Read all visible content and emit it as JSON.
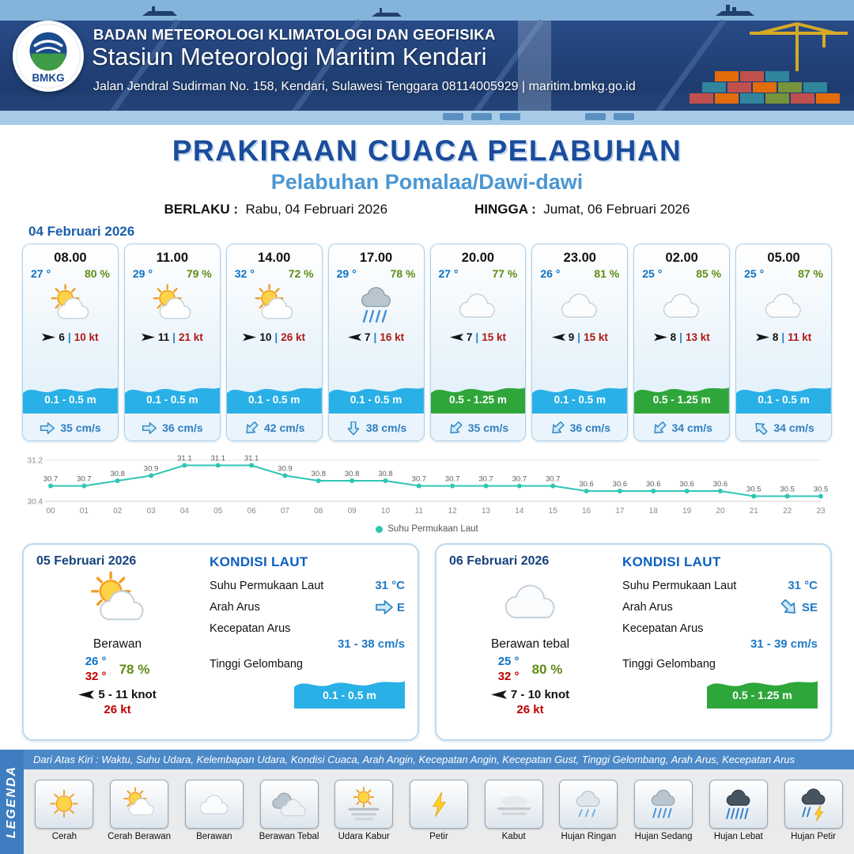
{
  "colors": {
    "wave_blue": "#29b0e6",
    "wave_green": "#2fa63a",
    "accent_blue": "#1b4c9c"
  },
  "header": {
    "logo_text": "BMKG",
    "agency": "BADAN METEOROLOGI KLIMATOLOGI DAN GEOFISIKA",
    "station": "Stasiun Meteorologi Maritim Kendari",
    "address": "Jalan Jendral Sudirman No. 158, Kendari, Sulawesi Tenggara  08114005929 | maritim.bmkg.go.id"
  },
  "title": {
    "main": "PRAKIRAAN CUACA PELABUHAN",
    "subtitle": "Pelabuhan Pomalaa/Dawi-dawi",
    "berlaku_label": "BERLAKU :",
    "berlaku_value": "Rabu, 04 Februari 2026",
    "hingga_label": "HINGGA :",
    "hingga_value": "Jumat, 06 Februari 2026"
  },
  "forecast": {
    "date": "04 Februari 2026",
    "cards": [
      {
        "time": "08.00",
        "temp": "27 °",
        "rh": "80 %",
        "icon": "cerah-berawan",
        "wind_dir": "E",
        "wind": "6",
        "gust": "10 kt",
        "wave": "0.1 - 0.5 m",
        "wave_color": "blue",
        "current_dir": "E",
        "current": "35 cm/s"
      },
      {
        "time": "11.00",
        "temp": "29 °",
        "rh": "79 %",
        "icon": "cerah-berawan",
        "wind_dir": "E",
        "wind": "11",
        "gust": "21 kt",
        "wave": "0.1 - 0.5 m",
        "wave_color": "blue",
        "current_dir": "E",
        "current": "36 cm/s"
      },
      {
        "time": "14.00",
        "temp": "32 °",
        "rh": "72 %",
        "icon": "cerah-berawan",
        "wind_dir": "E",
        "wind": "10",
        "gust": "26 kt",
        "wave": "0.1 - 0.5 m",
        "wave_color": "blue",
        "current_dir": "SW",
        "current": "42 cm/s"
      },
      {
        "time": "17.00",
        "temp": "29 °",
        "rh": "78 %",
        "icon": "hujan-sedang",
        "wind_dir": "W",
        "wind": "7",
        "gust": "16 kt",
        "wave": "0.1 - 0.5 m",
        "wave_color": "blue",
        "current_dir": "S",
        "current": "38 cm/s"
      },
      {
        "time": "20.00",
        "temp": "27 °",
        "rh": "77 %",
        "icon": "berawan",
        "wind_dir": "W",
        "wind": "7",
        "gust": "15 kt",
        "wave": "0.5 - 1.25 m",
        "wave_color": "green",
        "current_dir": "SW",
        "current": "35 cm/s"
      },
      {
        "time": "23.00",
        "temp": "26 °",
        "rh": "81 %",
        "icon": "berawan",
        "wind_dir": "W",
        "wind": "9",
        "gust": "15 kt",
        "wave": "0.1 - 0.5 m",
        "wave_color": "blue",
        "current_dir": "SW",
        "current": "36 cm/s"
      },
      {
        "time": "02.00",
        "temp": "25 °",
        "rh": "85 %",
        "icon": "berawan",
        "wind_dir": "E",
        "wind": "8",
        "gust": "13 kt",
        "wave": "0.5 - 1.25 m",
        "wave_color": "green",
        "current_dir": "SW",
        "current": "34 cm/s"
      },
      {
        "time": "05.00",
        "temp": "25 °",
        "rh": "87 %",
        "icon": "berawan",
        "wind_dir": "E",
        "wind": "8",
        "gust": "11 kt",
        "wave": "0.1 - 0.5 m",
        "wave_color": "blue",
        "current_dir": "NW",
        "current": "34 cm/s"
      }
    ]
  },
  "chart_data": {
    "type": "line",
    "x": [
      "00",
      "01",
      "02",
      "03",
      "04",
      "05",
      "06",
      "07",
      "08",
      "09",
      "10",
      "11",
      "12",
      "13",
      "14",
      "15",
      "16",
      "17",
      "18",
      "19",
      "20",
      "21",
      "22",
      "23"
    ],
    "series": [
      {
        "name": "Suhu Permukaan Laut",
        "values": [
          30.7,
          30.7,
          30.8,
          30.9,
          31.1,
          31.1,
          31.1,
          30.9,
          30.8,
          30.8,
          30.8,
          30.7,
          30.7,
          30.7,
          30.7,
          30.7,
          30.6,
          30.6,
          30.6,
          30.6,
          30.6,
          30.5,
          30.5,
          30.5
        ]
      }
    ],
    "ylim": [
      30.4,
      31.2
    ],
    "line_color": "#2fc5b5",
    "legend_position": "bottom-center",
    "grid": false
  },
  "days": [
    {
      "date": "05 Februari 2026",
      "condition": "Berawan",
      "icon": "cerah-berawan",
      "temp_min": "26 °",
      "temp_max": "32 °",
      "rh": "78 %",
      "wind_dir": "W",
      "wind": "5 - 11 knot",
      "gust": "26 kt",
      "sea": {
        "heading": "KONDISI LAUT",
        "sst_label": "Suhu Permukaan Laut",
        "sst": "31 °C",
        "current_dir_label": "Arah Arus",
        "current_dir": "E",
        "current_speed_label": "Kecepatan Arus",
        "current_speed": "31 - 38 cm/s",
        "wave_label": "Tinggi Gelombang",
        "wave": "0.1 - 0.5 m",
        "wave_color": "blue"
      }
    },
    {
      "date": "06 Februari 2026",
      "condition": "Berawan tebal",
      "icon": "berawan",
      "temp_min": "25 °",
      "temp_max": "32 °",
      "rh": "80 %",
      "wind_dir": "W",
      "wind": "7 - 10 knot",
      "gust": "26 kt",
      "sea": {
        "heading": "KONDISI LAUT",
        "sst_label": "Suhu Permukaan Laut",
        "sst": "31 °C",
        "current_dir_label": "Arah Arus",
        "current_dir": "SE",
        "current_speed_label": "Kecepatan Arus",
        "current_speed": "31 - 39 cm/s",
        "wave_label": "Tinggi Gelombang",
        "wave": "0.5 - 1.25 m",
        "wave_color": "green"
      }
    }
  ],
  "legend": {
    "title": "LEGENDA",
    "note": "Dari Atas Kiri : Waktu, Suhu Udara, Kelembapan Udara, Kondisi Cuaca, Arah Angin, Kecepatan Angin, Kecepatan Gust, Tinggi Gelombang, Arah Arus, Kecepatan Arus",
    "items": [
      {
        "label": "Cerah",
        "icon": "cerah"
      },
      {
        "label": "Cerah Berawan",
        "icon": "cerah-berawan"
      },
      {
        "label": "Berawan",
        "icon": "berawan"
      },
      {
        "label": "Berawan Tebal",
        "icon": "berawan-tebal"
      },
      {
        "label": "Udara Kabur",
        "icon": "udara-kabur"
      },
      {
        "label": "Petir",
        "icon": "petir"
      },
      {
        "label": "Kabut",
        "icon": "kabut"
      },
      {
        "label": "Hujan Ringan",
        "icon": "hujan-ringan"
      },
      {
        "label": "Hujan Sedang",
        "icon": "hujan-sedang"
      },
      {
        "label": "Hujan Lebat",
        "icon": "hujan-lebat"
      },
      {
        "label": "Hujan Petir",
        "icon": "hujan-petir"
      }
    ]
  }
}
